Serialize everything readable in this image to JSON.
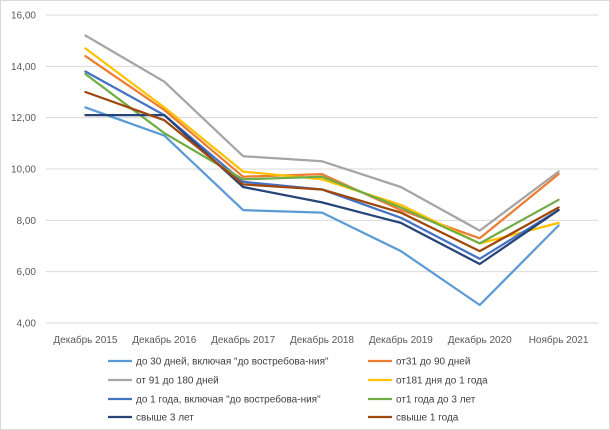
{
  "chart_data": {
    "type": "line",
    "title": "",
    "xlabel": "",
    "ylabel": "",
    "ylim": [
      4,
      16
    ],
    "y_ticks": [
      "4,00",
      "6,00",
      "8,00",
      "10,00",
      "12,00",
      "14,00",
      "16,00"
    ],
    "categories": [
      "Декабрь 2015",
      "Декабрь 2016",
      "Декабрь 2017",
      "Декабрь 2018",
      "Декабрь 2019",
      "Декабрь 2020",
      "Ноябрь 2021"
    ],
    "grid": true,
    "legend_position": "bottom",
    "series": [
      {
        "name": "до 30 дней, включая \"до востребова-ния\"",
        "color": "#5b9bd5",
        "values": [
          12.4,
          11.3,
          8.4,
          8.3,
          6.8,
          4.7,
          7.8
        ]
      },
      {
        "name": "от31 до 90 дней",
        "color": "#ed7d31",
        "values": [
          14.4,
          12.3,
          9.7,
          9.8,
          8.4,
          7.3,
          9.8
        ]
      },
      {
        "name": "от 91 до 180 дней",
        "color": "#a5a5a5",
        "values": [
          15.2,
          13.4,
          10.5,
          10.3,
          9.3,
          7.6,
          9.9
        ]
      },
      {
        "name": "от181 дня до 1 года",
        "color": "#ffc000",
        "values": [
          14.7,
          12.4,
          9.9,
          9.6,
          8.6,
          7.1,
          7.9
        ]
      },
      {
        "name": "до 1 года, включая \"до востребова-ния\"",
        "color": "#4472c4",
        "values": [
          13.8,
          12.1,
          9.5,
          9.2,
          8.1,
          6.5,
          8.4
        ]
      },
      {
        "name": "от1 года до 3 лет",
        "color": "#70ad47",
        "values": [
          13.7,
          11.4,
          9.6,
          9.7,
          8.5,
          7.1,
          8.8
        ]
      },
      {
        "name": "свыше 3 лет",
        "color": "#264478",
        "values": [
          12.1,
          12.1,
          9.3,
          8.7,
          7.9,
          6.3,
          8.4
        ]
      },
      {
        "name": "свыше 1 года",
        "color": "#9e480e",
        "values": [
          13.0,
          11.9,
          9.4,
          9.2,
          8.3,
          6.8,
          8.5
        ]
      }
    ]
  }
}
